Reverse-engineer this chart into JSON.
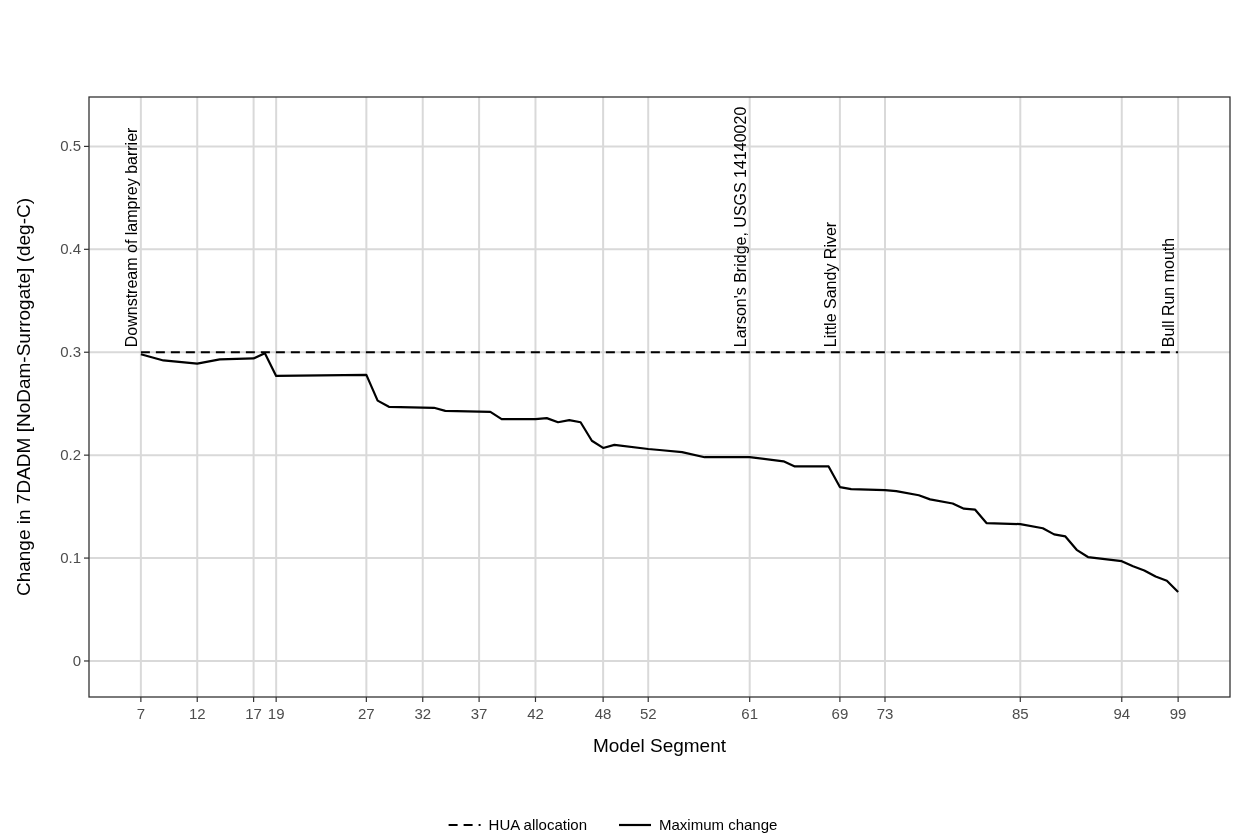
{
  "chart_data": {
    "type": "line",
    "xlabel": "Model Segment",
    "ylabel": "Change in 7DADM [NoDam-Surrogate] (deg-C)",
    "xlim": [
      2.4,
      103.6
    ],
    "xticks": [
      7,
      12,
      17,
      19,
      27,
      32,
      37,
      42,
      48,
      52,
      61,
      69,
      73,
      85,
      94,
      99
    ],
    "ylim": [
      -0.035,
      0.548
    ],
    "yticks": [
      0,
      0.1,
      0.2,
      0.3,
      0.4,
      0.5
    ],
    "grid": true,
    "legend": "bottom",
    "series": [
      {
        "name": "HUA allocation",
        "color": "#000000",
        "line_style": "dashed",
        "x": [
          7,
          99
        ],
        "values": [
          0.3,
          0.3
        ]
      },
      {
        "name": "Maximum change",
        "color": "#000000",
        "line_style": "solid",
        "x": [
          7,
          9,
          12,
          14,
          17,
          18,
          19,
          27,
          28,
          29,
          33,
          34,
          38,
          39,
          42,
          43,
          44,
          45,
          46,
          47,
          48,
          49,
          52,
          53,
          55,
          57,
          61,
          64,
          65,
          68,
          69,
          70,
          73,
          74,
          76,
          77,
          79,
          80,
          81,
          82,
          85,
          87,
          88,
          89,
          90,
          91,
          94,
          95,
          96,
          97,
          98,
          99
        ],
        "values": [
          0.298,
          0.292,
          0.289,
          0.293,
          0.294,
          0.299,
          0.277,
          0.278,
          0.253,
          0.247,
          0.246,
          0.243,
          0.242,
          0.235,
          0.235,
          0.236,
          0.232,
          0.234,
          0.232,
          0.214,
          0.207,
          0.21,
          0.206,
          0.205,
          0.203,
          0.198,
          0.198,
          0.194,
          0.189,
          0.189,
          0.169,
          0.167,
          0.166,
          0.165,
          0.161,
          0.157,
          0.153,
          0.148,
          0.147,
          0.134,
          0.133,
          0.129,
          0.123,
          0.121,
          0.108,
          0.101,
          0.097,
          0.092,
          0.088,
          0.082,
          0.078,
          0.067
        ]
      }
    ],
    "annotations": [
      {
        "text": "Downstream of lamprey barrier",
        "x": 7,
        "y": 0.3
      },
      {
        "text": "Larson's Bridge, USGS 14140020",
        "x": 61,
        "y": 0.3
      },
      {
        "text": "Little Sandy River",
        "x": 69,
        "y": 0.3
      },
      {
        "text": "Bull Run mouth",
        "x": 99,
        "y": 0.3
      }
    ]
  }
}
